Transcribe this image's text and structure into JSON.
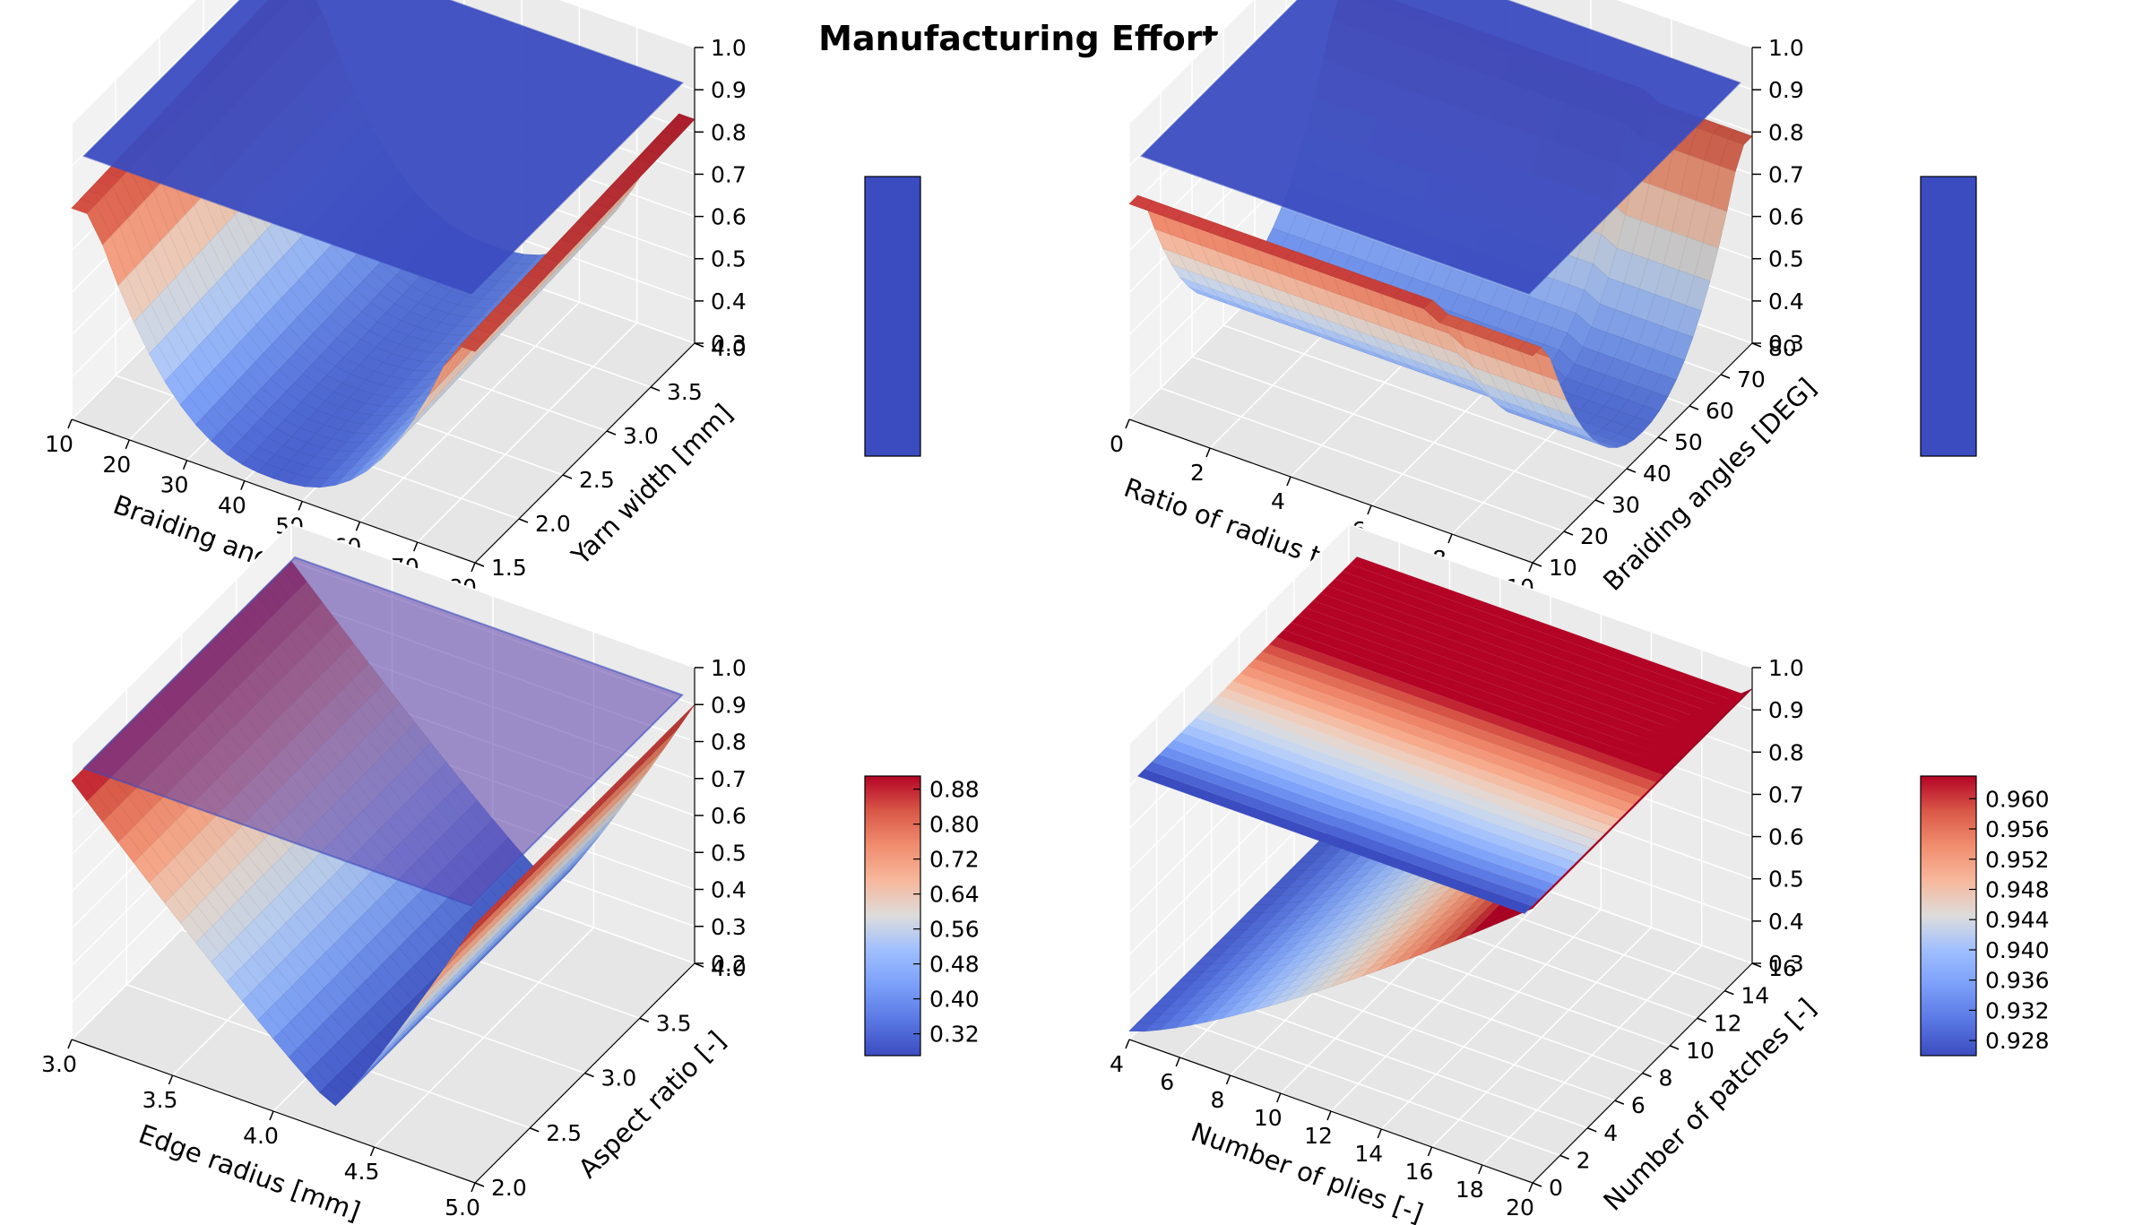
{
  "figure": {
    "title": "Manufacturing Effort Model"
  },
  "chart_data": [
    {
      "type": "surface3d",
      "xlabel": "Braiding angles [DEG]",
      "ylabel": "Yarn width [mm]",
      "x_ticks": [
        "10",
        "20",
        "30",
        "40",
        "50",
        "60",
        "70",
        "80"
      ],
      "y_ticks": [
        "1.5",
        "2.0",
        "2.5",
        "3.0",
        "3.5",
        "4.0"
      ],
      "z_ticks": [
        "0.3",
        "0.4",
        "0.5",
        "0.6",
        "0.7",
        "0.8",
        "0.9",
        "1.0"
      ],
      "xlim": [
        10,
        80
      ],
      "ylim": [
        1.5,
        4.0
      ],
      "zlim": [
        0.3,
        1.0
      ],
      "colorbar_ticks": [],
      "surface": "bowl, min about 0.33 at mid braiding angle, rising to about 0.80 at both angle extremes",
      "plane_z": 0.92
    },
    {
      "type": "surface3d",
      "xlabel": "Ratio of radius to diameter [-]",
      "ylabel": "Braiding angles [DEG]",
      "x_ticks": [
        "0",
        "2",
        "4",
        "6",
        "8",
        "10"
      ],
      "y_ticks": [
        "10",
        "20",
        "30",
        "40",
        "50",
        "60",
        "70",
        "80"
      ],
      "z_ticks": [
        "0.3",
        "0.4",
        "0.5",
        "0.6",
        "0.7",
        "0.8",
        "0.9",
        "1.0"
      ],
      "xlim": [
        0,
        10
      ],
      "ylim": [
        10,
        80
      ],
      "zlim": [
        0.3,
        1.0
      ],
      "colorbar_ticks": [],
      "surface": "bowl along braiding angle, min about 0.35, rising to about 0.80 at angle extremes",
      "plane_z": 0.92
    },
    {
      "type": "surface3d",
      "xlabel": "Edge radius [mm]",
      "ylabel": "Aspect ratio [-]",
      "x_ticks": [
        "3.0",
        "3.5",
        "4.0",
        "4.5",
        "5.0"
      ],
      "y_ticks": [
        "2.0",
        "2.5",
        "3.0",
        "3.5",
        "4.0"
      ],
      "z_ticks": [
        "0.2",
        "0.3",
        "0.4",
        "0.5",
        "0.6",
        "0.7",
        "0.8",
        "0.9",
        "1.0"
      ],
      "xlim": [
        3.0,
        5.0
      ],
      "ylim": [
        2.0,
        4.0
      ],
      "zlim": [
        0.2,
        1.0
      ],
      "colorbar_ticks": [
        "0.88",
        "0.80",
        "0.72",
        "0.64",
        "0.56",
        "0.48",
        "0.40",
        "0.32"
      ],
      "colorbar_range": [
        0.27,
        0.91
      ],
      "surface": "V-shaped valley, min about 0.27 at edge radius 4.3, rising to about 0.90 at the edges",
      "plane_z": 0.93
    },
    {
      "type": "surface3d",
      "xlabel": "Number of plies [-]",
      "ylabel": "Number of patches [-]",
      "x_ticks": [
        "4",
        "6",
        "8",
        "10",
        "12",
        "14",
        "16",
        "18",
        "20"
      ],
      "y_ticks": [
        "0",
        "2",
        "4",
        "6",
        "8",
        "10",
        "12",
        "14",
        "16"
      ],
      "z_ticks": [
        "0.3",
        "0.4",
        "0.5",
        "0.6",
        "0.7",
        "0.8",
        "0.9",
        "1.0"
      ],
      "xlim": [
        4,
        20
      ],
      "ylim": [
        0,
        16
      ],
      "zlim": [
        0.3,
        1.0
      ],
      "colorbar_ticks": [
        "0.960",
        "0.956",
        "0.952",
        "0.948",
        "0.944",
        "0.940",
        "0.936",
        "0.932",
        "0.928"
      ],
      "colorbar_range": [
        0.926,
        0.963
      ],
      "surface": "sloped surface rising from about 0.32 at few plies to about 0.95; plane shaded by patches from 0.926 to 0.963",
      "plane_z": 0.93
    }
  ]
}
